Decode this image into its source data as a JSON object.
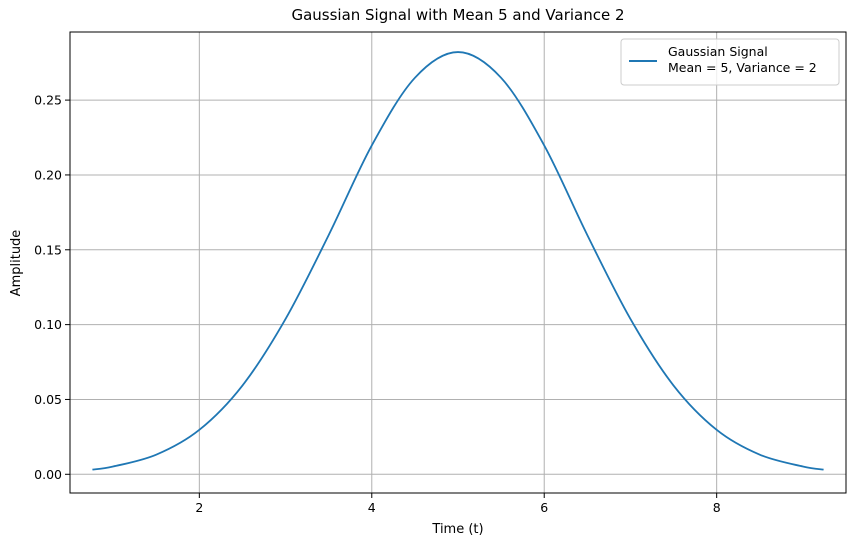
{
  "chart_data": {
    "type": "line",
    "title": "Gaussian Signal with Mean 5 and Variance 2",
    "xlabel": "Time (t)",
    "ylabel": "Amplitude",
    "xlim": [
      0.5,
      9.5
    ],
    "ylim": [
      -0.0125,
      0.2955
    ],
    "xticks": [
      2,
      4,
      6,
      8
    ],
    "xtick_labels": [
      "2",
      "4",
      "6",
      "8"
    ],
    "yticks": [
      0.0,
      0.05,
      0.1,
      0.15,
      0.2,
      0.25
    ],
    "ytick_labels": [
      "0.00",
      "0.05",
      "0.10",
      "0.15",
      "0.20",
      "0.25"
    ],
    "grid": true,
    "legend_position": "top-right",
    "series": [
      {
        "name": "Gaussian Signal\nMean = 5, Variance = 2",
        "color": "#1f77b4",
        "x": [
          0.76,
          1.0,
          1.5,
          2.0,
          2.5,
          3.0,
          3.5,
          4.0,
          4.5,
          5.0,
          5.5,
          6.0,
          6.5,
          7.0,
          7.5,
          8.0,
          8.5,
          9.0,
          9.24
        ],
        "y": [
          0.0031,
          0.0052,
          0.0131,
          0.0297,
          0.0593,
          0.1038,
          0.1598,
          0.2197,
          0.2649,
          0.2821,
          0.2649,
          0.2197,
          0.1598,
          0.1038,
          0.0593,
          0.0297,
          0.0131,
          0.0052,
          0.0031
        ]
      }
    ]
  }
}
